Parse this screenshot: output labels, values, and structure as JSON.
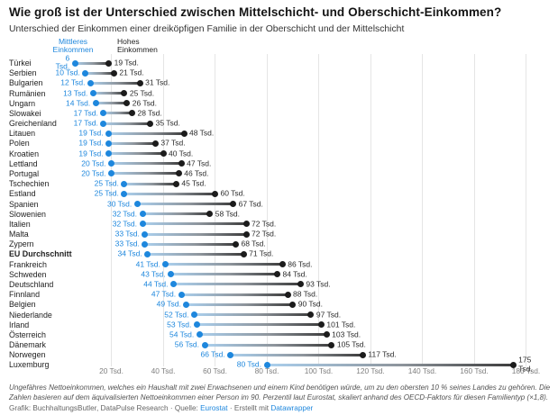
{
  "header": {
    "title": "Wie groß ist der Unterschied zwischen Mittelschicht- und Oberschicht-Einkommen?",
    "subtitle": "Unterschied der Einkommen einer dreiköpfigen Familie in der Oberschicht und der Mittelschicht"
  },
  "legend": {
    "middle_label": "Mittleres Einkommen",
    "high_label": "Hohes Einkommen"
  },
  "chart_data": {
    "type": "dumbbell",
    "unit": "Tsd.",
    "xlim": [
      0,
      192
    ],
    "x_ticks": [
      20,
      40,
      60,
      80,
      100,
      120,
      140,
      160,
      180
    ],
    "x_tick_labels": [
      "20 Tsd.",
      "40 Tsd.",
      "60 Tsd.",
      "80 Tsd.",
      "100 Tsd.",
      "120 Tsd.",
      "140 Tsd.",
      "160 Tsd.",
      "180 Tsd."
    ],
    "grid": true,
    "series": [
      {
        "name": "Mittleres Einkommen",
        "color": "#1e87dd"
      },
      {
        "name": "Hohes Einkommen",
        "color": "#1c1c1c"
      }
    ],
    "rows": [
      {
        "country": "Türkei",
        "middle": 6,
        "high": 19,
        "wrap_middle": true
      },
      {
        "country": "Serbien",
        "middle": 10,
        "high": 21
      },
      {
        "country": "Bulgarien",
        "middle": 12,
        "high": 31
      },
      {
        "country": "Rumänien",
        "middle": 13,
        "high": 25
      },
      {
        "country": "Ungarn",
        "middle": 14,
        "high": 26
      },
      {
        "country": "Slowakei",
        "middle": 17,
        "high": 28
      },
      {
        "country": "Greichenland",
        "middle": 17,
        "high": 35
      },
      {
        "country": "Litauen",
        "middle": 19,
        "high": 48
      },
      {
        "country": "Polen",
        "middle": 19,
        "high": 37
      },
      {
        "country": "Kroatien",
        "middle": 19,
        "high": 40
      },
      {
        "country": "Lettland",
        "middle": 20,
        "high": 47
      },
      {
        "country": "Portugal",
        "middle": 20,
        "high": 46
      },
      {
        "country": "Tschechien",
        "middle": 25,
        "high": 45
      },
      {
        "country": "Estland",
        "middle": 25,
        "high": 60
      },
      {
        "country": "Spanien",
        "middle": 30,
        "high": 67
      },
      {
        "country": "Slowenien",
        "middle": 32,
        "high": 58
      },
      {
        "country": "Italien",
        "middle": 32,
        "high": 72
      },
      {
        "country": "Malta",
        "middle": 33,
        "high": 72
      },
      {
        "country": "Zypern",
        "middle": 33,
        "high": 68
      },
      {
        "country": "EU Durchschnitt",
        "middle": 34,
        "high": 71,
        "bold": true
      },
      {
        "country": "Frankreich",
        "middle": 41,
        "high": 86
      },
      {
        "country": "Schweden",
        "middle": 43,
        "high": 84
      },
      {
        "country": "Deutschland",
        "middle": 44,
        "high": 93
      },
      {
        "country": "Finnland",
        "middle": 47,
        "high": 88
      },
      {
        "country": "Belgien",
        "middle": 49,
        "high": 90
      },
      {
        "country": "Niederlande",
        "middle": 52,
        "high": 97
      },
      {
        "country": "Irland",
        "middle": 53,
        "high": 101
      },
      {
        "country": "Österreich",
        "middle": 54,
        "high": 103
      },
      {
        "country": "Dänemark",
        "middle": 56,
        "high": 105
      },
      {
        "country": "Norwegen",
        "middle": 66,
        "high": 117
      },
      {
        "country": "Luxemburg",
        "middle": 80,
        "high": 175,
        "wrap_high": true
      }
    ]
  },
  "colors": {
    "blue": "#1e87dd",
    "dot_dark": "#1c1c1c",
    "line_gradient_start": "#abd0ee",
    "line_gradient_mid": "#8d949b",
    "line_gradient_end": "#3c3c3c",
    "gridline": "#e5e5e5"
  },
  "footer": {
    "note": "Ungefähres Nettoeinkommen, welches ein Haushalt mit zwei Erwachsenen und einem Kind benötigen würde, um zu den obersten 10 % seines Landes zu gehören. Die Zahlen basieren auf dem äquivalisierten Nettoeinkommen einer Person im 90. Perzentil laut Eurostat, skaliert anhand des OECD-Faktors für diesen Familientyp (×1,8).",
    "credit_prefix": "Grafik: BuchhaltungsButler, DataPulse Research · Quelle: ",
    "source_link": "Eurostat",
    "credit_separator": " · Erstellt mit ",
    "tool_link": "Datawrapper"
  }
}
